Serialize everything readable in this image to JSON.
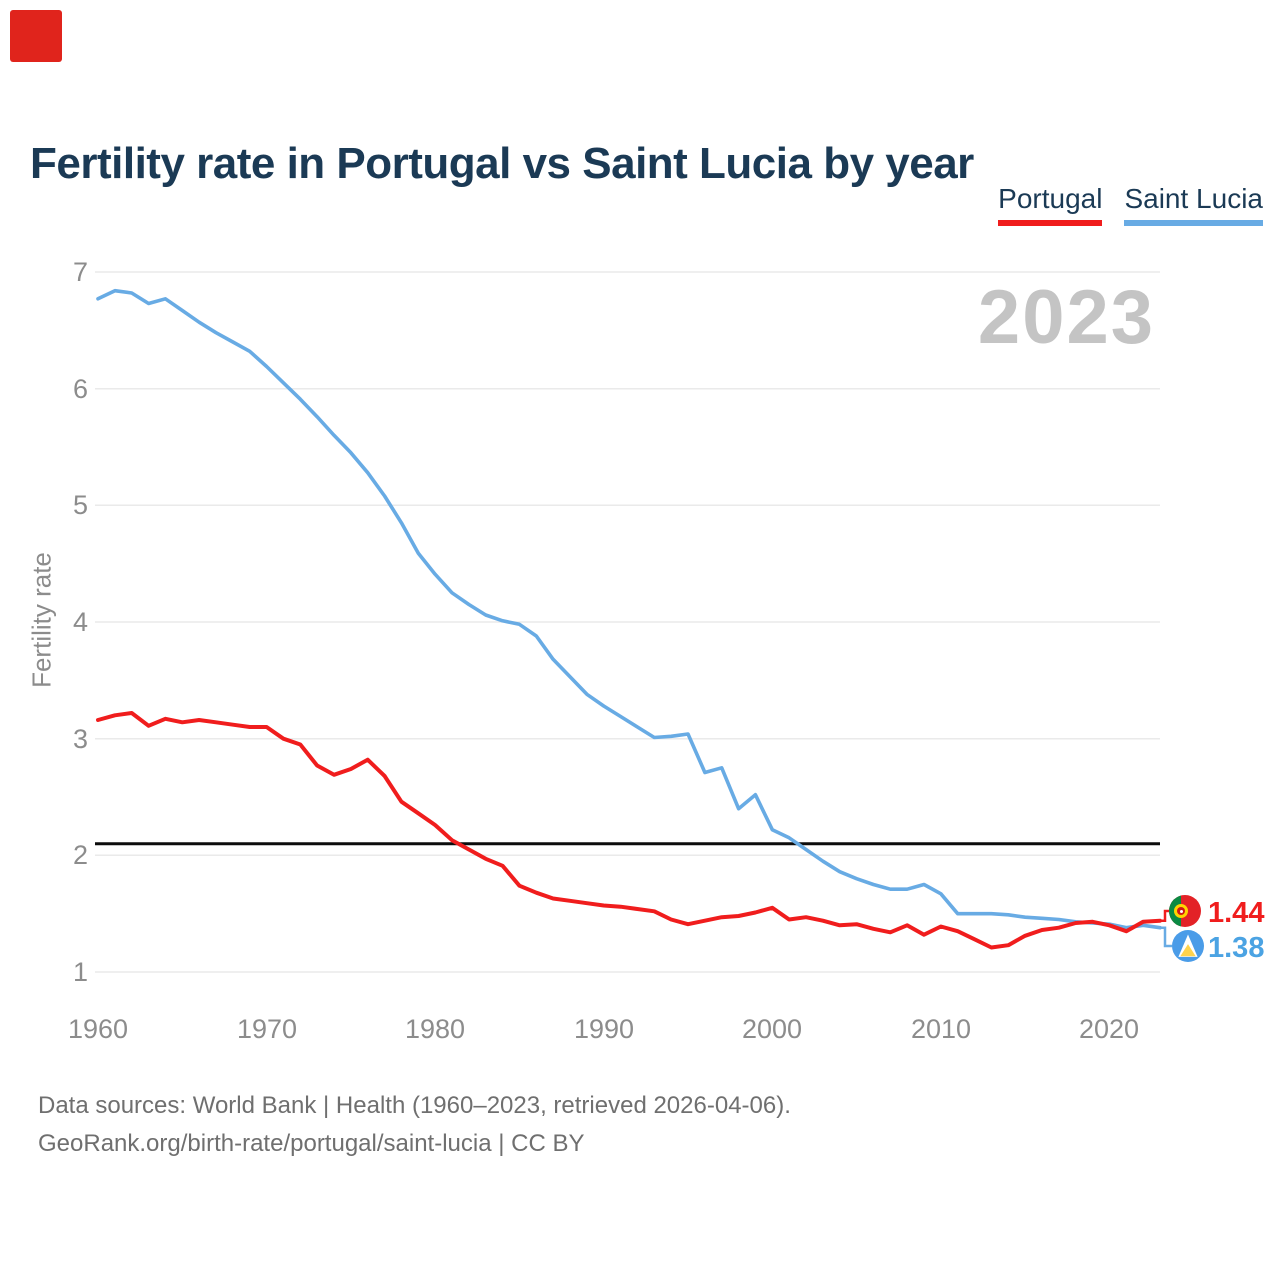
{
  "title": "Fertility rate in Portugal vs Saint Lucia by year",
  "corner_marker": {
    "color": "#e0241c"
  },
  "watermark": "2023",
  "legend": [
    {
      "label": "Portugal",
      "color": "#f01d1d"
    },
    {
      "label": "Saint Lucia",
      "color": "#68abe4"
    }
  ],
  "end_labels": [
    {
      "series": "Portugal",
      "value": "1.44",
      "flag": "portugal-flag"
    },
    {
      "series": "Saint Lucia",
      "value": "1.38",
      "flag": "saint-lucia-flag"
    }
  ],
  "footer": {
    "line1": "Data sources: World Bank | Health (1960–2023, retrieved 2026-04-06).",
    "line2": "GeoRank.org/birth-rate/portugal/saint-lucia | CC BY"
  },
  "chart_data": {
    "type": "line",
    "title": "Fertility rate in Portugal vs Saint Lucia by year",
    "xlabel": "",
    "ylabel": "Fertility rate",
    "ylim": [
      1,
      7
    ],
    "xlim": [
      1960,
      2023
    ],
    "grid": "horizontal",
    "legend_position": "top-right",
    "reference_line": 2.1,
    "ytick_labels": [
      "7",
      "6",
      "5",
      "4",
      "3",
      "2",
      "1"
    ],
    "xticks": [
      "1960",
      "1970",
      "1980",
      "1990",
      "2000",
      "2010",
      "2020"
    ],
    "years": [
      1960,
      1961,
      1962,
      1963,
      1964,
      1965,
      1966,
      1967,
      1968,
      1969,
      1970,
      1971,
      1972,
      1973,
      1974,
      1975,
      1976,
      1977,
      1978,
      1979,
      1980,
      1981,
      1982,
      1983,
      1984,
      1985,
      1986,
      1987,
      1988,
      1989,
      1990,
      1991,
      1992,
      1993,
      1994,
      1995,
      1996,
      1997,
      1998,
      1999,
      2000,
      2001,
      2002,
      2003,
      2004,
      2005,
      2006,
      2007,
      2008,
      2009,
      2010,
      2011,
      2012,
      2013,
      2014,
      2015,
      2016,
      2017,
      2018,
      2019,
      2020,
      2021,
      2022,
      2023
    ],
    "series": [
      {
        "name": "Portugal",
        "color": "#f01d1d",
        "final_value": 1.44,
        "values": [
          3.16,
          3.2,
          3.22,
          3.11,
          3.17,
          3.14,
          3.16,
          3.14,
          3.12,
          3.1,
          3.1,
          3.0,
          2.95,
          2.77,
          2.69,
          2.74,
          2.82,
          2.68,
          2.46,
          2.36,
          2.26,
          2.13,
          2.05,
          1.97,
          1.91,
          1.74,
          1.68,
          1.63,
          1.61,
          1.59,
          1.57,
          1.56,
          1.54,
          1.52,
          1.45,
          1.41,
          1.44,
          1.47,
          1.48,
          1.51,
          1.55,
          1.45,
          1.47,
          1.44,
          1.4,
          1.41,
          1.37,
          1.34,
          1.4,
          1.32,
          1.39,
          1.35,
          1.28,
          1.21,
          1.23,
          1.31,
          1.36,
          1.38,
          1.42,
          1.43,
          1.4,
          1.35,
          1.43,
          1.44
        ]
      },
      {
        "name": "Saint Lucia",
        "color": "#68abe4",
        "final_value": 1.38,
        "values": [
          6.77,
          6.84,
          6.82,
          6.73,
          6.77,
          6.67,
          6.57,
          6.48,
          6.4,
          6.32,
          6.19,
          6.05,
          5.91,
          5.76,
          5.6,
          5.45,
          5.28,
          5.08,
          4.85,
          4.59,
          4.41,
          4.25,
          4.15,
          4.06,
          4.01,
          3.98,
          3.88,
          3.68,
          3.53,
          3.38,
          3.28,
          3.19,
          3.1,
          3.01,
          3.02,
          3.04,
          2.71,
          2.75,
          2.4,
          2.52,
          2.22,
          2.15,
          2.05,
          1.95,
          1.86,
          1.8,
          1.75,
          1.71,
          1.71,
          1.75,
          1.67,
          1.5,
          1.5,
          1.5,
          1.49,
          1.47,
          1.46,
          1.45,
          1.43,
          1.42,
          1.41,
          1.38,
          1.4,
          1.38
        ]
      }
    ]
  }
}
